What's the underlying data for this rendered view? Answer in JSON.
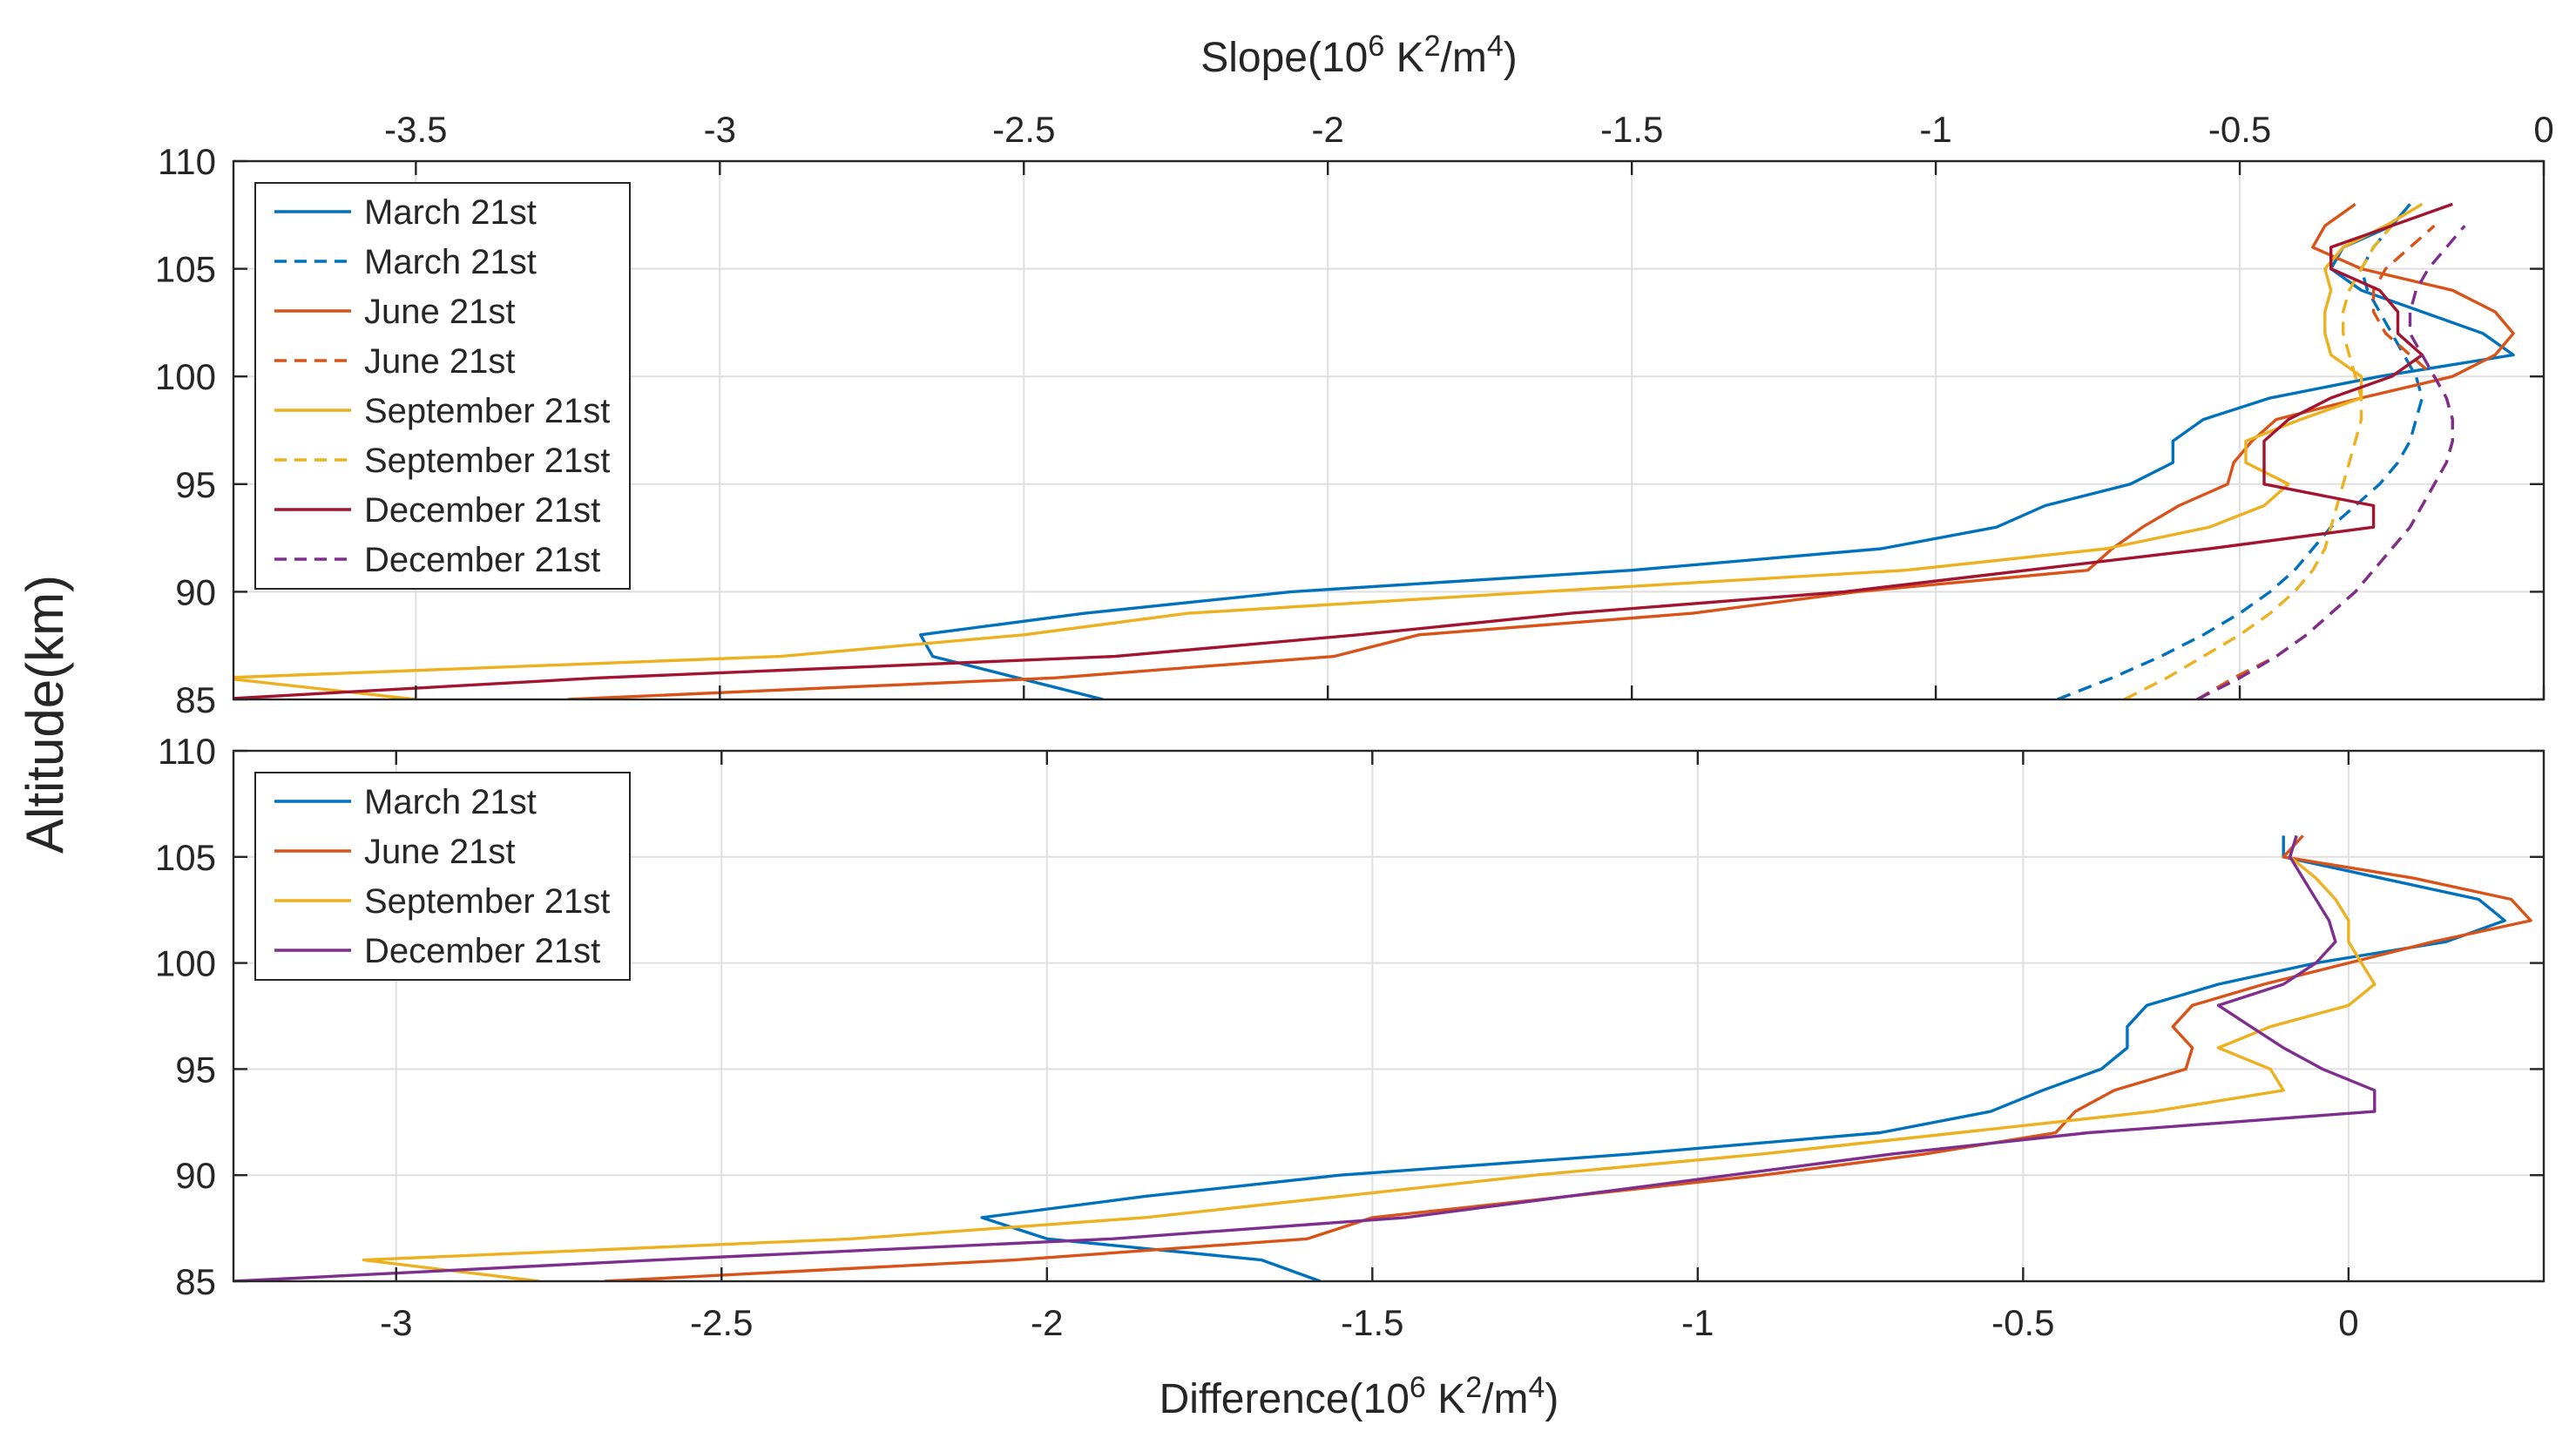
{
  "figure": {
    "ylabel": "Altitude(km)",
    "top_xlabel_prefix": "Slope(10",
    "bottom_xlabel_prefix": "Difference(10",
    "unit_exp": "6",
    "unit_k": " K",
    "unit_k_exp": "2",
    "unit_m": "/m",
    "unit_m_exp": "4",
    "unit_close": ")"
  },
  "chart_data": [
    {
      "type": "line",
      "title": "",
      "xlabel": "Slope(10^6 K^2/m^4)",
      "ylabel": "Altitude(km)",
      "xlim": [
        -3.8,
        0
      ],
      "ylim": [
        85,
        110
      ],
      "x_axis_location": "top",
      "xticks": [
        -3.5,
        -3,
        -2.5,
        -2,
        -1.5,
        -1,
        -0.5,
        0
      ],
      "xtick_labels": [
        "-3.5",
        "-3",
        "-2.5",
        "-2",
        "-1.5",
        "-1",
        "-0.5",
        "0"
      ],
      "yticks": [
        85,
        90,
        95,
        100,
        105,
        110
      ],
      "ytick_labels": [
        "85",
        "90",
        "95",
        "100",
        "105",
        "110"
      ],
      "grid": true,
      "legend_location": "top-left",
      "series": [
        {
          "name": "March 21st",
          "color": "#0072bd",
          "style": "solid",
          "y": [
            85,
            86,
            87,
            88,
            89,
            90,
            91,
            92,
            93,
            94,
            95,
            96,
            97,
            98,
            99,
            100,
            101,
            102,
            103,
            104,
            105,
            106,
            107,
            108
          ],
          "x": [
            -2.37,
            -2.51,
            -2.65,
            -2.67,
            -2.4,
            -2.06,
            -1.5,
            -1.09,
            -0.9,
            -0.82,
            -0.68,
            -0.61,
            -0.61,
            -0.56,
            -0.45,
            -0.27,
            -0.05,
            -0.1,
            -0.2,
            -0.3,
            -0.35,
            -0.33,
            -0.25,
            -0.22
          ]
        },
        {
          "name": "March 21st",
          "color": "#0072bd",
          "style": "dashed",
          "y": [
            85,
            86,
            87,
            88,
            89,
            90,
            91,
            92,
            93,
            94,
            95,
            96,
            97,
            98,
            99,
            100,
            101,
            102,
            103,
            104,
            105,
            106,
            107
          ],
          "x": [
            -0.8,
            -0.71,
            -0.63,
            -0.56,
            -0.5,
            -0.45,
            -0.41,
            -0.38,
            -0.35,
            -0.31,
            -0.27,
            -0.24,
            -0.22,
            -0.21,
            -0.2,
            -0.21,
            -0.23,
            -0.25,
            -0.27,
            -0.29,
            -0.3,
            -0.28,
            -0.25
          ]
        },
        {
          "name": "June 21st",
          "color": "#d95319",
          "style": "solid",
          "y": [
            85,
            86,
            87,
            88,
            89,
            90,
            91,
            92,
            93,
            94,
            95,
            96,
            97,
            98,
            99,
            100,
            101,
            102,
            103,
            104,
            105,
            106,
            107,
            108
          ],
          "x": [
            -3.25,
            -2.45,
            -1.99,
            -1.85,
            -1.4,
            -1.13,
            -0.75,
            -0.71,
            -0.66,
            -0.6,
            -0.52,
            -0.51,
            -0.48,
            -0.44,
            -0.3,
            -0.15,
            -0.08,
            -0.05,
            -0.08,
            -0.15,
            -0.3,
            -0.38,
            -0.36,
            -0.31
          ]
        },
        {
          "name": "June 21st",
          "color": "#d95319",
          "style": "dashed",
          "y": [
            85,
            86,
            87,
            88,
            89,
            90,
            91,
            92,
            93,
            94,
            95,
            96,
            97,
            98,
            99,
            100,
            101,
            102,
            103,
            104,
            105,
            106,
            107
          ],
          "x": [
            -0.57,
            -0.51,
            -0.44,
            -0.39,
            -0.35,
            -0.31,
            -0.28,
            -0.25,
            -0.22,
            -0.2,
            -0.18,
            -0.16,
            -0.15,
            -0.15,
            -0.16,
            -0.18,
            -0.22,
            -0.26,
            -0.28,
            -0.28,
            -0.26,
            -0.22,
            -0.18
          ]
        },
        {
          "name": "September 21st",
          "color": "#edb120",
          "style": "solid",
          "y": [
            85,
            86,
            87,
            88,
            89,
            90,
            91,
            92,
            93,
            94,
            95,
            96,
            97,
            98,
            99,
            100,
            101,
            102,
            103,
            104,
            105,
            106,
            107,
            108
          ],
          "x": [
            -3.5,
            -3.82,
            -2.9,
            -2.5,
            -2.23,
            -1.65,
            -1.05,
            -0.72,
            -0.55,
            -0.46,
            -0.42,
            -0.49,
            -0.49,
            -0.4,
            -0.3,
            -0.3,
            -0.35,
            -0.36,
            -0.36,
            -0.35,
            -0.36,
            -0.33,
            -0.26,
            -0.2
          ]
        },
        {
          "name": "September 21st",
          "color": "#edb120",
          "style": "dashed",
          "y": [
            85,
            86,
            87,
            88,
            89,
            90,
            91,
            92,
            93,
            94,
            95,
            96,
            97,
            98,
            99,
            100,
            101,
            102,
            103,
            104,
            105,
            106,
            107
          ],
          "x": [
            -0.69,
            -0.62,
            -0.56,
            -0.5,
            -0.45,
            -0.41,
            -0.38,
            -0.36,
            -0.35,
            -0.34,
            -0.33,
            -0.32,
            -0.31,
            -0.3,
            -0.3,
            -0.31,
            -0.32,
            -0.33,
            -0.33,
            -0.32,
            -0.3,
            -0.28,
            -0.25
          ]
        },
        {
          "name": "December 21st",
          "color": "#a2142f",
          "style": "solid",
          "y": [
            85,
            86,
            87,
            88,
            89,
            90,
            91,
            92,
            93,
            94,
            95,
            96,
            97,
            98,
            99,
            100,
            101,
            102,
            103,
            104,
            105,
            106,
            107,
            108
          ],
          "x": [
            -3.83,
            -3.2,
            -2.35,
            -1.95,
            -1.6,
            -1.15,
            -0.85,
            -0.55,
            -0.28,
            -0.28,
            -0.46,
            -0.46,
            -0.46,
            -0.42,
            -0.35,
            -0.25,
            -0.2,
            -0.24,
            -0.24,
            -0.27,
            -0.35,
            -0.35,
            -0.25,
            -0.15
          ]
        },
        {
          "name": "December 21st",
          "color": "#7e2f8e",
          "style": "dashed",
          "y": [
            85,
            86,
            87,
            88,
            89,
            90,
            91,
            92,
            93,
            94,
            95,
            96,
            97,
            98,
            99,
            100,
            101,
            102,
            103,
            104,
            105,
            106,
            107
          ],
          "x": [
            -0.57,
            -0.5,
            -0.44,
            -0.39,
            -0.35,
            -0.31,
            -0.28,
            -0.25,
            -0.22,
            -0.2,
            -0.18,
            -0.16,
            -0.15,
            -0.15,
            -0.16,
            -0.18,
            -0.2,
            -0.22,
            -0.22,
            -0.21,
            -0.19,
            -0.16,
            -0.13
          ]
        }
      ]
    },
    {
      "type": "line",
      "title": "",
      "xlabel": "Difference(10^6 K^2/m^4)",
      "ylabel": "Altitude(km)",
      "xlim": [
        -3.25,
        0.3
      ],
      "ylim": [
        85,
        110
      ],
      "x_axis_location": "bottom",
      "xticks": [
        -3,
        -2.5,
        -2,
        -1.5,
        -1,
        -0.5,
        0
      ],
      "xtick_labels": [
        "-3",
        "-2.5",
        "-2",
        "-1.5",
        "-1",
        "-0.5",
        "0"
      ],
      "yticks": [
        85,
        90,
        95,
        100,
        105,
        110
      ],
      "ytick_labels": [
        "85",
        "90",
        "95",
        "100",
        "105",
        "110"
      ],
      "grid": true,
      "legend_location": "top-left",
      "series": [
        {
          "name": "March 21st",
          "color": "#0072bd",
          "style": "solid",
          "y": [
            85,
            86,
            87,
            88,
            89,
            90,
            91,
            92,
            93,
            94,
            95,
            96,
            97,
            98,
            99,
            100,
            101,
            102,
            103,
            104,
            105,
            106
          ],
          "x": [
            -1.58,
            -1.67,
            -2.0,
            -2.1,
            -1.85,
            -1.55,
            -1.1,
            -0.72,
            -0.55,
            -0.47,
            -0.38,
            -0.34,
            -0.34,
            -0.31,
            -0.2,
            -0.05,
            0.15,
            0.24,
            0.2,
            0.05,
            -0.1,
            -0.1
          ]
        },
        {
          "name": "June 21st",
          "color": "#d95319",
          "style": "solid",
          "y": [
            85,
            86,
            87,
            88,
            89,
            90,
            91,
            92,
            93,
            94,
            95,
            96,
            97,
            98,
            99,
            100,
            101,
            102,
            103,
            104,
            105,
            106
          ],
          "x": [
            -2.68,
            -2.05,
            -1.6,
            -1.5,
            -1.2,
            -0.9,
            -0.65,
            -0.45,
            -0.42,
            -0.36,
            -0.25,
            -0.24,
            -0.27,
            -0.24,
            -0.13,
            0.0,
            0.13,
            0.28,
            0.25,
            0.1,
            -0.1,
            -0.07
          ]
        },
        {
          "name": "September 21st",
          "color": "#edb120",
          "style": "solid",
          "y": [
            85,
            86,
            87,
            88,
            89,
            90,
            91,
            92,
            93,
            94,
            95,
            96,
            97,
            98,
            99,
            100,
            101,
            102,
            103,
            104,
            105,
            106
          ],
          "x": [
            -2.78,
            -3.05,
            -2.3,
            -1.85,
            -1.55,
            -1.25,
            -0.9,
            -0.6,
            -0.3,
            -0.1,
            -0.12,
            -0.2,
            -0.12,
            0.0,
            0.04,
            0.02,
            0.0,
            0.0,
            -0.02,
            -0.05,
            -0.09,
            -0.08
          ]
        },
        {
          "name": "December 21st",
          "color": "#7e2f8e",
          "style": "solid",
          "y": [
            85,
            86,
            87,
            88,
            89,
            90,
            91,
            92,
            93,
            94,
            95,
            96,
            97,
            98,
            99,
            100,
            101,
            102,
            103,
            104,
            105,
            106
          ],
          "x": [
            -3.25,
            -2.6,
            -1.9,
            -1.45,
            -1.2,
            -0.95,
            -0.7,
            -0.4,
            0.04,
            0.04,
            -0.04,
            -0.1,
            -0.15,
            -0.2,
            -0.1,
            -0.05,
            -0.02,
            -0.03,
            -0.05,
            -0.07,
            -0.09,
            -0.08
          ]
        }
      ]
    }
  ]
}
